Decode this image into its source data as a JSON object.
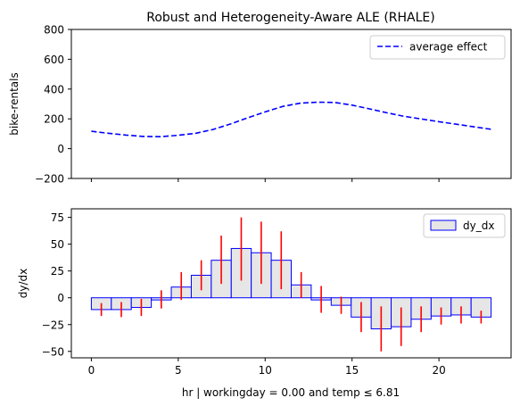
{
  "chart_data": [
    {
      "type": "line",
      "title": "Robust and Heterogeneity-Aware ALE (RHALE)",
      "ylabel": "bike-rentals",
      "ylim": [
        -200,
        800
      ],
      "xlim": [
        -1.15,
        24.15
      ],
      "yticks": [
        -200,
        0,
        200,
        400,
        600,
        800
      ],
      "xticks": [
        0,
        5,
        10,
        15,
        20
      ],
      "x_tick_labels_shown": false,
      "legend": {
        "placement": "top-right",
        "entries": [
          "average effect"
        ]
      },
      "series": [
        {
          "name": "average effect",
          "style": "dashed",
          "color": "#0000ff",
          "x": [
            0,
            1,
            2,
            3,
            4,
            5,
            6,
            7,
            8,
            9,
            10,
            11,
            12,
            13,
            14,
            15,
            16,
            17,
            18,
            19,
            20,
            21,
            22,
            23
          ],
          "y": [
            117,
            103,
            91,
            82,
            80,
            90,
            103,
            129,
            165,
            207,
            247,
            283,
            305,
            312,
            310,
            292,
            267,
            241,
            217,
            199,
            181,
            164,
            147,
            130
          ]
        }
      ],
      "grid": false
    },
    {
      "type": "bar",
      "xlabel": "hr | workingday = 0.00 and temp ≤ 6.81",
      "ylabel": "dy/dx",
      "ylim": [
        -56,
        83
      ],
      "xlim": [
        -1.15,
        24.15
      ],
      "yticks": [
        -50,
        -25,
        0,
        25,
        50,
        75
      ],
      "xticks": [
        0,
        5,
        10,
        15,
        20
      ],
      "legend": {
        "placement": "top-right",
        "entries": [
          "dy_dx"
        ]
      },
      "bin_edges": [
        0,
        1.15,
        2.3,
        3.45,
        4.6,
        5.75,
        6.9,
        8.05,
        9.2,
        10.35,
        11.5,
        12.65,
        13.8,
        14.95,
        16.1,
        17.25,
        18.4,
        19.55,
        20.7,
        21.85,
        23
      ],
      "values": [
        -11,
        -11,
        -9,
        -2,
        10,
        21,
        35,
        46,
        42,
        35,
        12,
        -2,
        -7,
        -18,
        -29,
        -27,
        -20,
        -17,
        -16,
        -18
      ],
      "error_lower": [
        -17,
        -18,
        -17,
        -10,
        -2,
        7,
        13,
        16,
        13,
        8,
        0,
        -14,
        -15,
        -32,
        -50,
        -45,
        -32,
        -25,
        -24,
        -24
      ],
      "error_upper": [
        -5,
        -4,
        -1,
        7,
        24,
        35,
        58,
        75,
        71,
        62,
        24,
        11,
        1,
        -4,
        -8,
        -9,
        -8,
        -9,
        -8,
        -12
      ],
      "bar_face_color": "#e6e6e6",
      "bar_edge_color": "#0000ff",
      "error_color": "#ff0000",
      "grid": false
    }
  ]
}
